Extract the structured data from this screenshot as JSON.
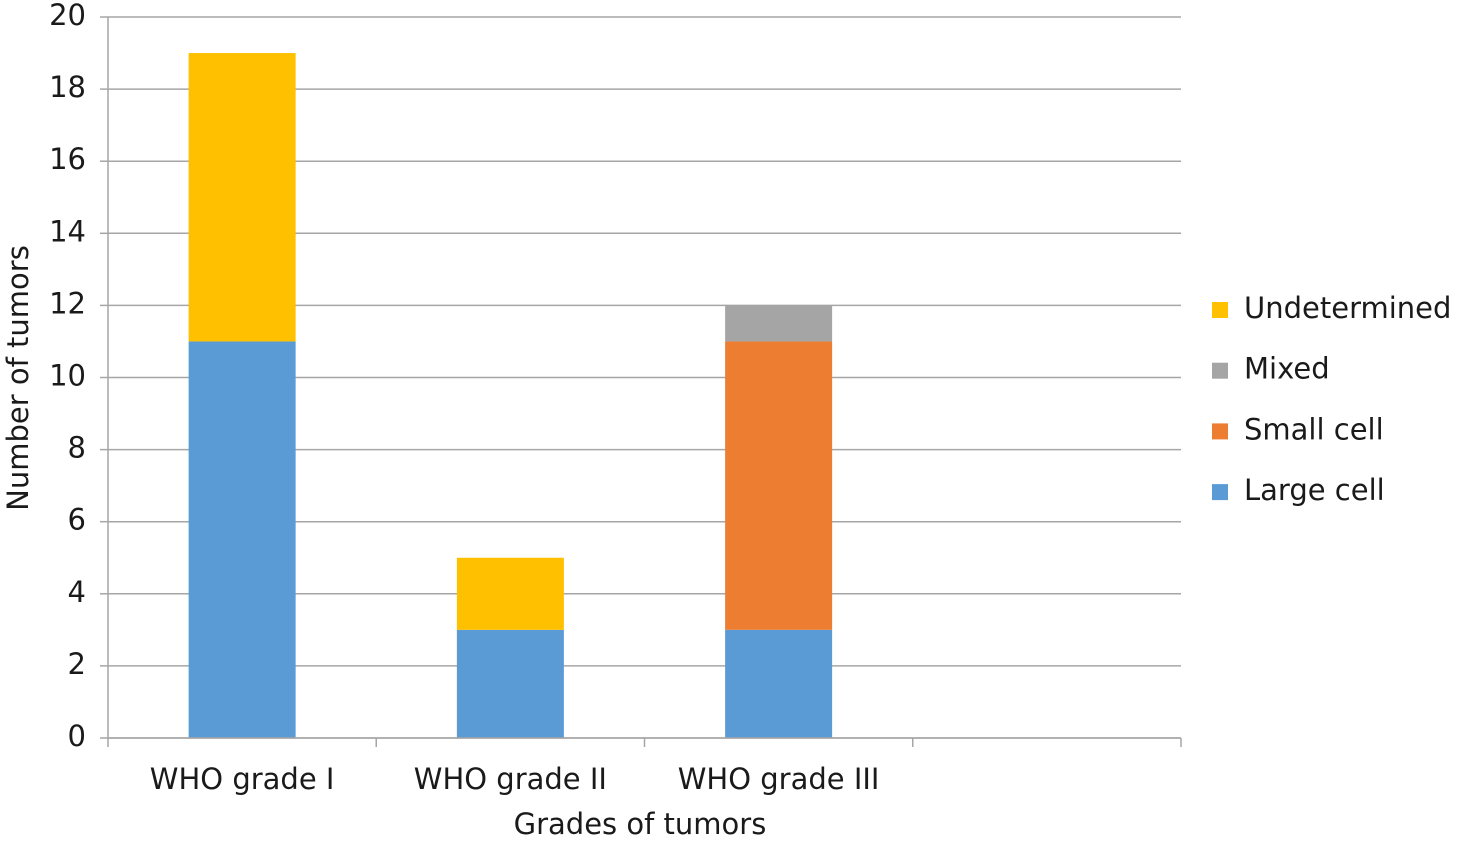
{
  "chart_data": {
    "type": "stacked-bar",
    "x_label": "Grades of tumors",
    "y_label": "Number of tumors",
    "categories": [
      "WHO grade I",
      "WHO grade II",
      "WHO grade III",
      null
    ],
    "series": [
      {
        "name": "Large cell",
        "color": "#5b9bd5",
        "values": [
          11,
          3,
          3,
          null
        ]
      },
      {
        "name": "Small cell",
        "color": "#ed7d31",
        "values": [
          0,
          0,
          8,
          null
        ]
      },
      {
        "name": "Mixed",
        "color": "#a5a5a5",
        "values": [
          0,
          0,
          1,
          null
        ]
      },
      {
        "name": "Undetermined",
        "color": "#ffc000",
        "values": [
          8,
          2,
          0,
          null
        ]
      }
    ],
    "ylim": [
      0,
      20
    ],
    "yticks": [
      0,
      2,
      4,
      6,
      8,
      10,
      12,
      14,
      16,
      18,
      20
    ],
    "grid": true,
    "legend": "right"
  }
}
